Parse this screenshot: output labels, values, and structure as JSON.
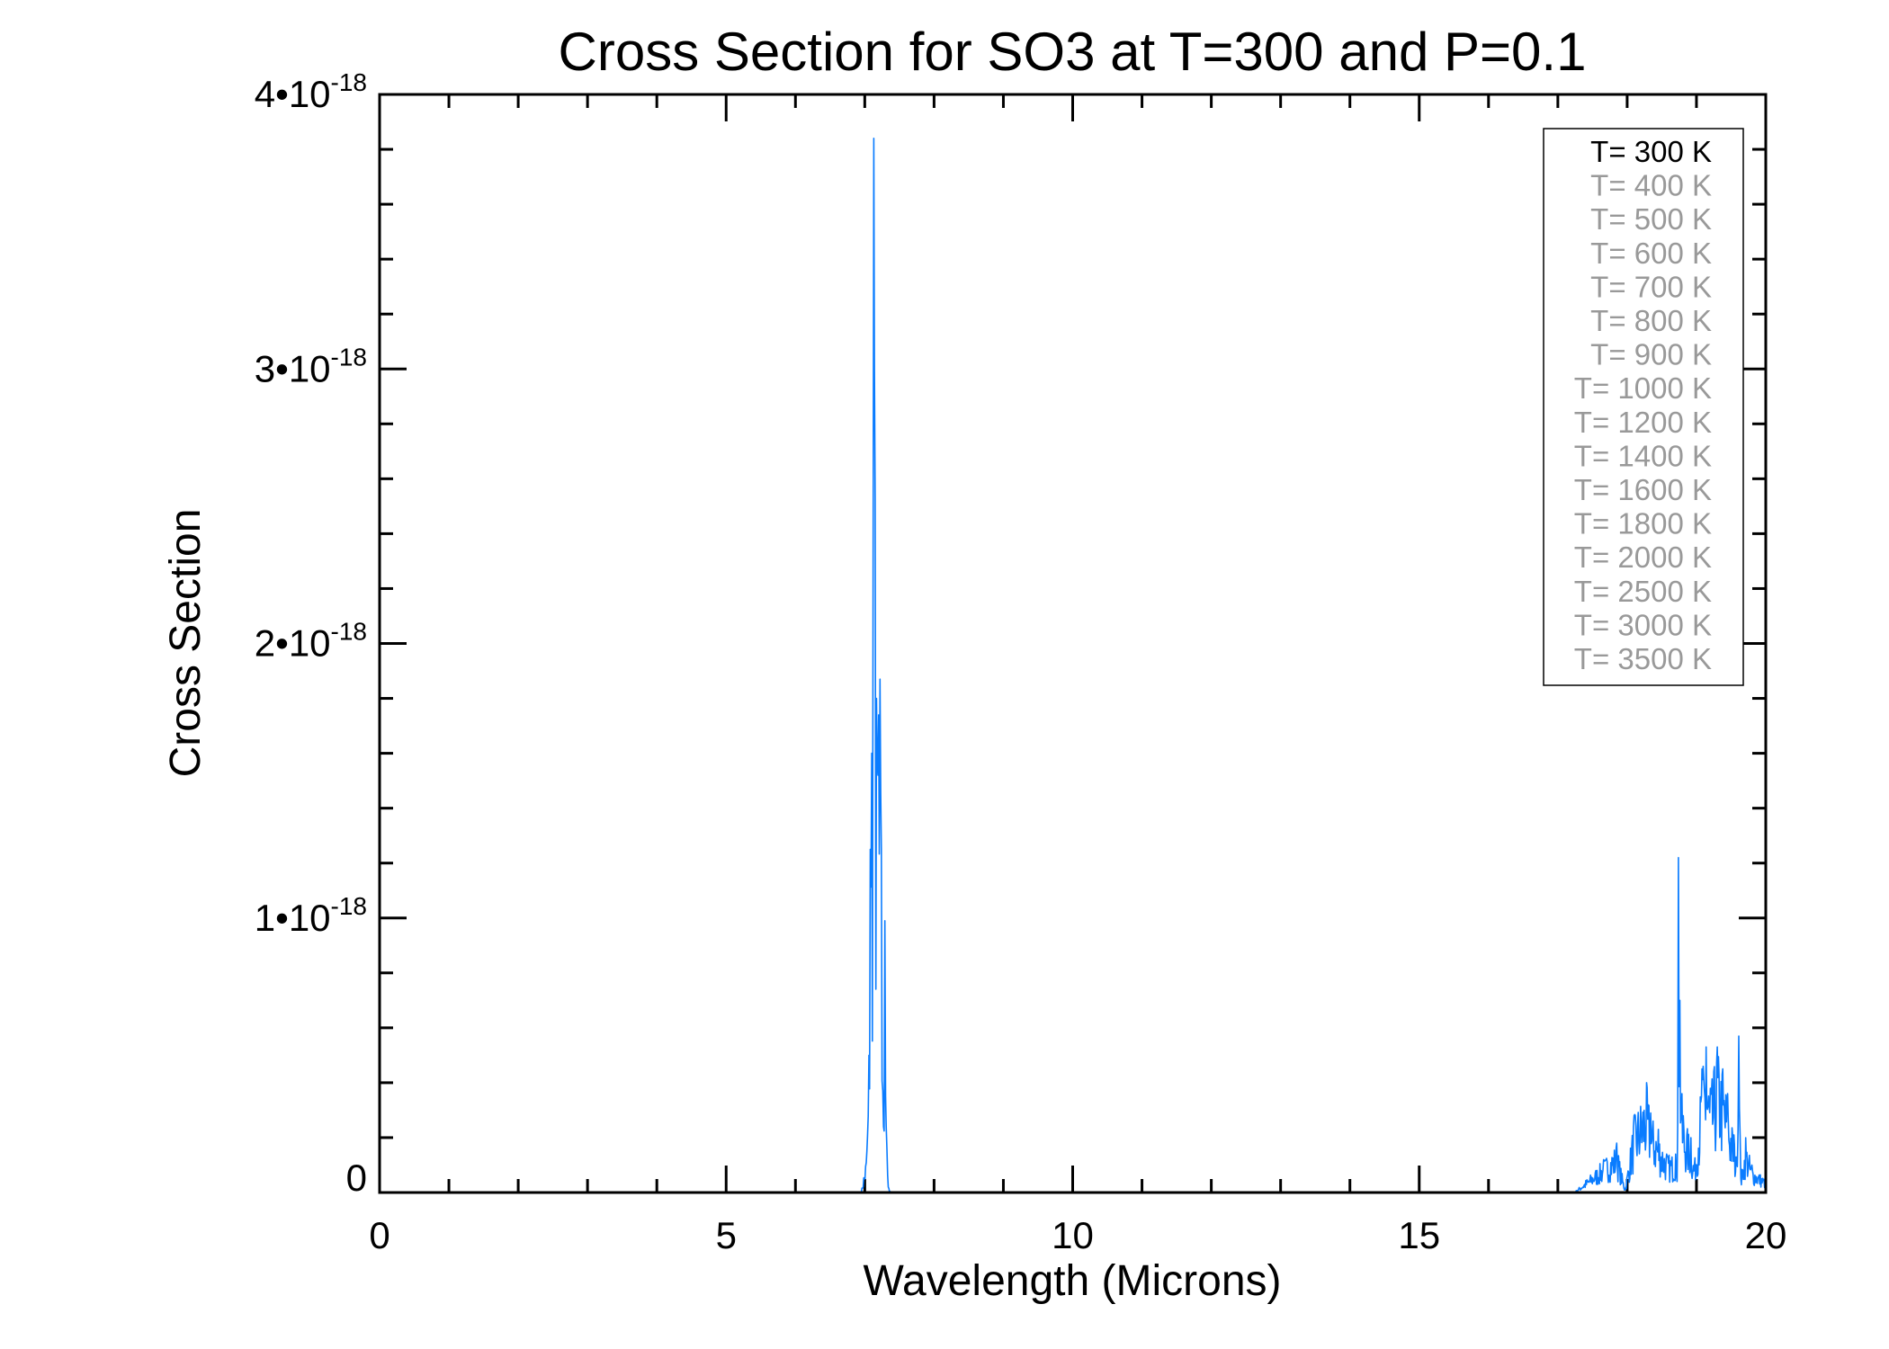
{
  "chart_data": {
    "type": "line",
    "title": "Cross Section for SO3 at T=300 and P=0.1",
    "xlabel": "Wavelength (Microns)",
    "ylabel": "Cross Section",
    "xlim": [
      0,
      20
    ],
    "ylim": [
      0,
      4e-18
    ],
    "y_unit_multiplier": 1e-18,
    "grid": false,
    "x_ticks": [
      0,
      5,
      10,
      15,
      20
    ],
    "x_tick_labels": [
      "0",
      "5",
      "10",
      "15",
      "20"
    ],
    "y_ticks": [
      0,
      1,
      2,
      3,
      4
    ],
    "y_tick_labels": [
      {
        "mant": "0",
        "exp": ""
      },
      {
        "mant": "1•10",
        "exp": "-18"
      },
      {
        "mant": "2•10",
        "exp": "-18"
      },
      {
        "mant": "3•10",
        "exp": "-18"
      },
      {
        "mant": "4•10",
        "exp": "-18"
      }
    ],
    "legend": {
      "placement": "top-right",
      "entries": [
        {
          "label": "T= 300 K",
          "color": "#000000"
        },
        {
          "label": "T= 400 K",
          "color": "#999999"
        },
        {
          "label": "T= 500 K",
          "color": "#999999"
        },
        {
          "label": "T= 600 K",
          "color": "#999999"
        },
        {
          "label": "T= 700 K",
          "color": "#999999"
        },
        {
          "label": "T= 800 K",
          "color": "#999999"
        },
        {
          "label": "T= 900 K",
          "color": "#999999"
        },
        {
          "label": "T= 1000 K",
          "color": "#999999"
        },
        {
          "label": "T= 1200 K",
          "color": "#999999"
        },
        {
          "label": "T= 1400 K",
          "color": "#999999"
        },
        {
          "label": "T= 1600 K",
          "color": "#999999"
        },
        {
          "label": "T= 1800 K",
          "color": "#999999"
        },
        {
          "label": "T= 2000 K",
          "color": "#999999"
        },
        {
          "label": "T= 2500 K",
          "color": "#999999"
        },
        {
          "label": "T= 3000 K",
          "color": "#999999"
        },
        {
          "label": "T= 3500 K",
          "color": "#999999"
        }
      ]
    },
    "series": [
      {
        "name": "T= 300 K",
        "color": "#0a7cff",
        "x": [
          0,
          6.95,
          7.03,
          7.06,
          7.08,
          7.1,
          7.12,
          7.13,
          7.15,
          7.17,
          7.19,
          7.2,
          7.22,
          7.24,
          7.26,
          7.27,
          7.29,
          7.31,
          7.34,
          7.38,
          17.24,
          17.66,
          17.85,
          17.97,
          18.1,
          18.28,
          18.34,
          18.45,
          18.57,
          18.7,
          18.72,
          18.74,
          18.76,
          18.79,
          18.81,
          18.92,
          18.97,
          19.08,
          19.14,
          19.2,
          19.3,
          19.38,
          19.45,
          19.54,
          19.58,
          19.61,
          19.64,
          19.71,
          19.8,
          20.0
        ],
        "y": [
          0,
          0,
          0.15,
          0.5,
          1.25,
          1.6,
          2.2,
          3.84,
          2.53,
          1.8,
          1.52,
          1.74,
          1.87,
          1.25,
          0.37,
          0.24,
          0.99,
          0.24,
          0.02,
          0,
          0,
          0.12,
          0.18,
          0.01,
          0.28,
          0.4,
          0.29,
          0.23,
          0.14,
          0.14,
          0.04,
          1.22,
          0.7,
          0.36,
          0.28,
          0.2,
          0.1,
          0.45,
          0.53,
          0.38,
          0.53,
          0.45,
          0.36,
          0.21,
          0.12,
          0.57,
          0.05,
          0.2,
          0.1,
          0.05
        ]
      }
    ]
  }
}
